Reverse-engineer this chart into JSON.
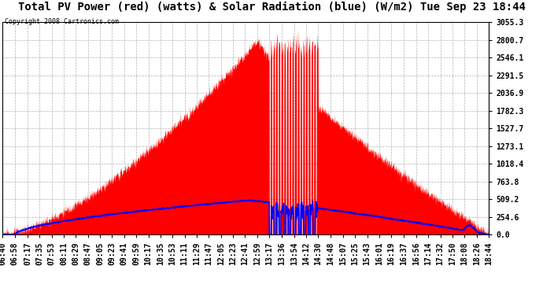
{
  "title": "Total PV Power (red) (watts) & Solar Radiation (blue) (W/m2) Tue Sep 23 18:44",
  "copyright": "Copyright 2008 Cartronics.com",
  "y_max": 3055.3,
  "y_ticks": [
    0.0,
    254.6,
    509.2,
    763.8,
    1018.4,
    1273.1,
    1527.7,
    1782.3,
    2036.9,
    2291.5,
    2546.1,
    2800.7,
    3055.3
  ],
  "x_labels": [
    "06:40",
    "06:58",
    "07:17",
    "07:35",
    "07:53",
    "08:11",
    "08:29",
    "08:47",
    "09:05",
    "09:23",
    "09:41",
    "09:59",
    "10:17",
    "10:35",
    "10:53",
    "11:11",
    "11:29",
    "11:47",
    "12:05",
    "12:23",
    "12:41",
    "12:59",
    "13:17",
    "13:36",
    "13:54",
    "14:12",
    "14:30",
    "14:48",
    "15:07",
    "15:25",
    "15:43",
    "16:01",
    "16:19",
    "16:37",
    "16:56",
    "17:14",
    "17:32",
    "17:50",
    "18:08",
    "18:26",
    "18:44"
  ],
  "background_color": "#ffffff",
  "plot_bg_color": "#ffffff",
  "grid_color": "#aaaaaa",
  "red_color": "#ff0000",
  "blue_color": "#0000ff",
  "title_fontsize": 10,
  "tick_fontsize": 7
}
